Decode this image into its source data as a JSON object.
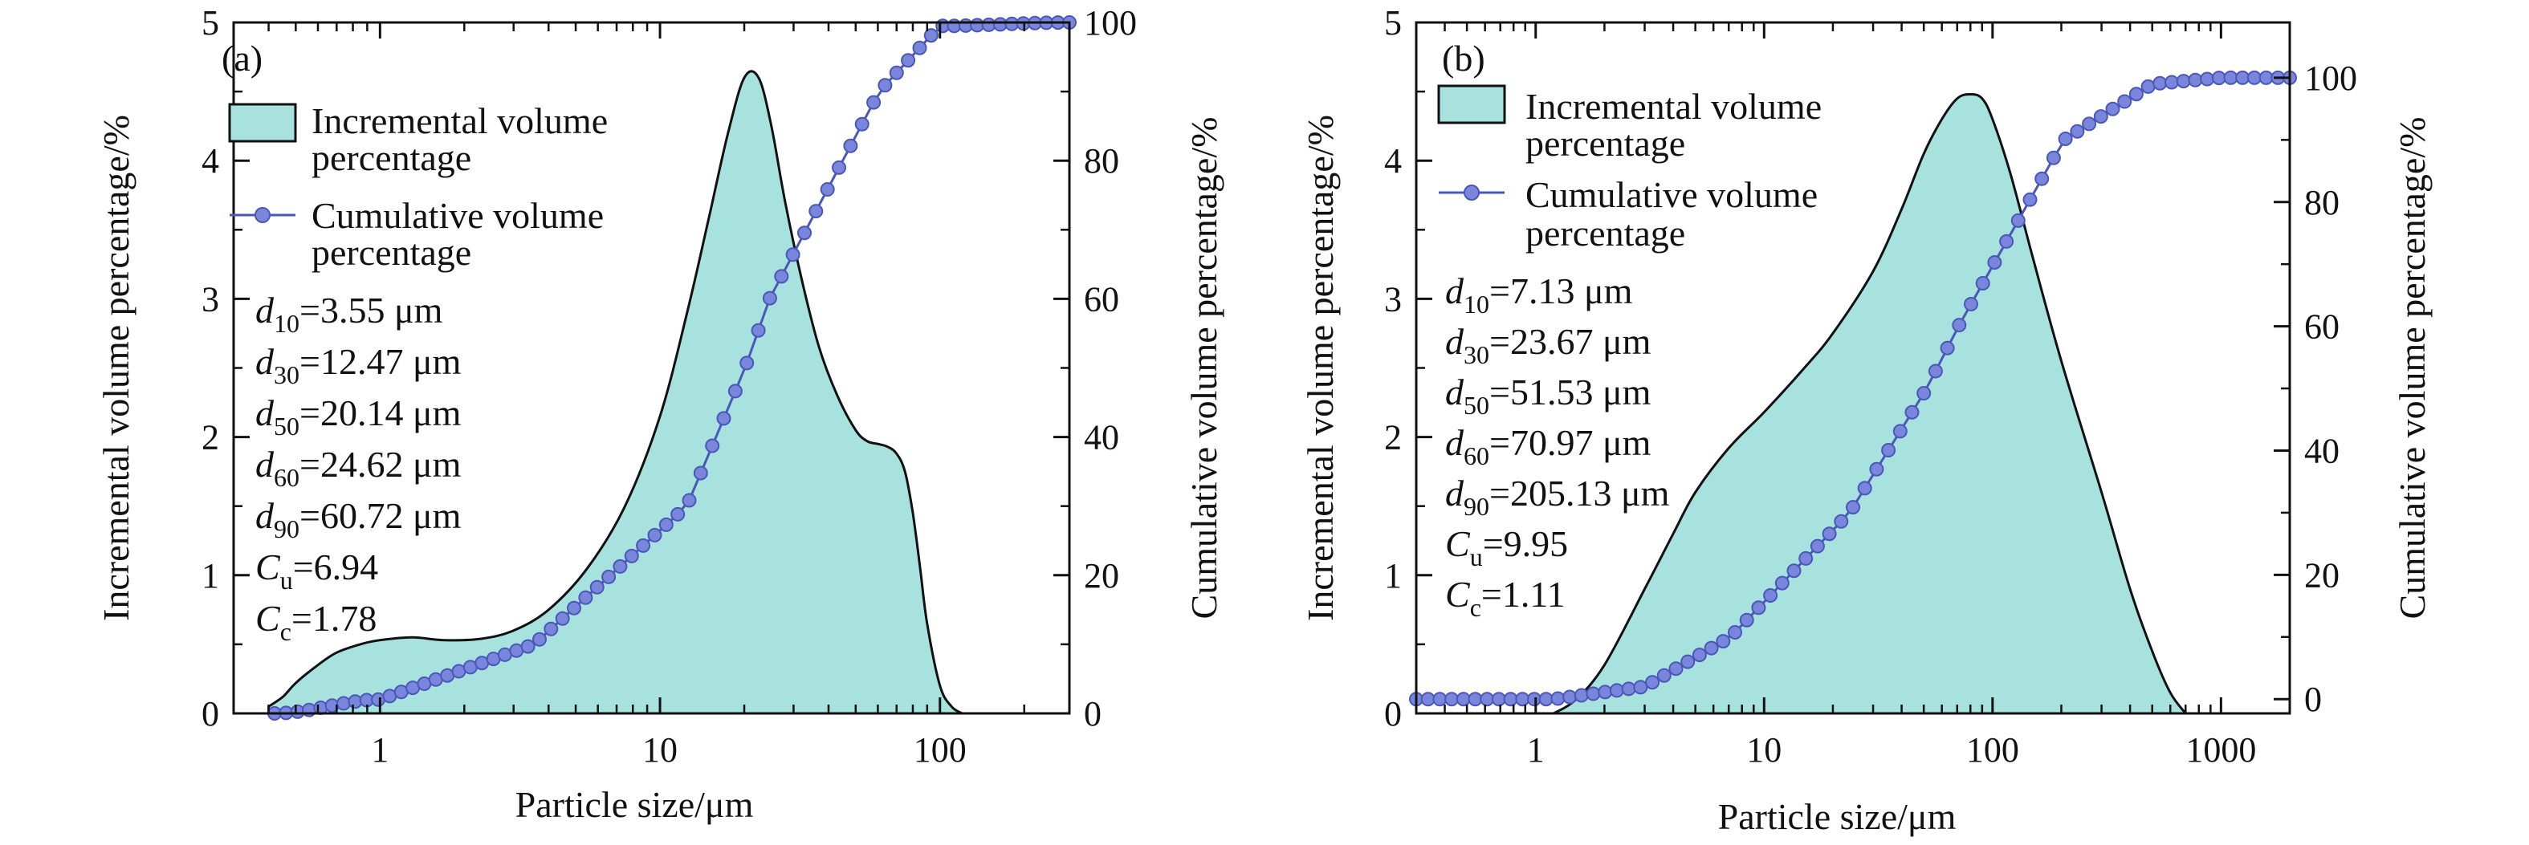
{
  "figure": {
    "colors": {
      "fill": "#a8e2df",
      "outline": "#111111",
      "cumulative_line": "#4a57b8",
      "marker": "#7a86dc"
    }
  },
  "chart_data": [
    {
      "type": "area",
      "panel_label": "(a)",
      "xlabel": "Particle size/μm",
      "ylabel_left": "Incremental volume percentage/%",
      "ylabel_right": "Cumulative volume percentage/%",
      "x_scale": "log",
      "xlim": [
        0.3,
        290
      ],
      "ylim_left": [
        0,
        5
      ],
      "ylim_right": [
        0,
        100
      ],
      "x_ticks": [
        1,
        10,
        100
      ],
      "x_tick_labels": [
        "1",
        "10",
        "100"
      ],
      "y_ticks_left": [
        0,
        1,
        2,
        3,
        4,
        5
      ],
      "y_tick_labels_left": [
        "0",
        "1",
        "2",
        "3",
        "4",
        "5"
      ],
      "y_ticks_right": [
        0,
        20,
        40,
        60,
        80,
        100
      ],
      "y_tick_labels_right": [
        "0",
        "20",
        "40",
        "60",
        "80",
        "100"
      ],
      "legend": {
        "incremental_line1": "Incremental volume",
        "incremental_line2": "percentage",
        "cumulative_line1": "Cumulative volume",
        "cumulative_line2": "percentage"
      },
      "annotations": [
        {
          "sym": "d",
          "sub": "10",
          "val": "=3.55 μm"
        },
        {
          "sym": "d",
          "sub": "30",
          "val": "=12.47 μm"
        },
        {
          "sym": "d",
          "sub": "50",
          "val": "=20.14 μm"
        },
        {
          "sym": "d",
          "sub": "60",
          "val": "=24.62 μm"
        },
        {
          "sym": "d",
          "sub": "90",
          "val": "=60.72 μm"
        },
        {
          "sym": "C",
          "sub": "u",
          "val": "=6.94"
        },
        {
          "sym": "C",
          "sub": "c",
          "val": "=1.78"
        }
      ],
      "incremental_series": {
        "x": [
          0.4,
          0.45,
          0.5,
          0.6,
          0.7,
          0.85,
          1.0,
          1.3,
          1.7,
          2.3,
          3.0,
          4.0,
          5.5,
          7.5,
          10,
          12.5,
          15,
          17.5,
          20,
          22.5,
          25,
          28,
          32,
          37,
          43,
          50,
          55,
          60,
          65,
          70,
          75,
          80,
          85,
          90,
          100,
          110,
          120
        ],
        "y": [
          0.05,
          0.12,
          0.22,
          0.35,
          0.44,
          0.5,
          0.53,
          0.55,
          0.53,
          0.54,
          0.6,
          0.75,
          1.05,
          1.5,
          2.15,
          2.9,
          3.6,
          4.2,
          4.6,
          4.6,
          4.25,
          3.7,
          3.15,
          2.65,
          2.3,
          2.05,
          1.97,
          1.95,
          1.93,
          1.88,
          1.75,
          1.45,
          1.05,
          0.65,
          0.2,
          0.05,
          0.0
        ]
      },
      "cumulative_series": {
        "x_start": 0.42,
        "x_end": 290,
        "points": 70,
        "median": 20.14,
        "log_sigma": 0.55,
        "anchors": [
          [
            0.42,
            0
          ],
          [
            1,
            2
          ],
          [
            3.55,
            10
          ],
          [
            12.47,
            30
          ],
          [
            20.14,
            50
          ],
          [
            24.62,
            60
          ],
          [
            60.72,
            90
          ],
          [
            100,
            99.5
          ],
          [
            290,
            100
          ]
        ]
      }
    },
    {
      "type": "area",
      "panel_label": "(b)",
      "xlabel": "Particle size/μm",
      "ylabel_left": "Incremental volume percentage/%",
      "ylabel_right": "Cumulative volume percentage/%",
      "x_scale": "log",
      "xlim": [
        0.3,
        2000
      ],
      "ylim_left": [
        0,
        5
      ],
      "ylim_right": [
        -2.3,
        108.9
      ],
      "x_ticks": [
        1,
        10,
        100,
        1000
      ],
      "x_tick_labels": [
        "1",
        "10",
        "100",
        "1000"
      ],
      "y_ticks_left": [
        0,
        1,
        2,
        3,
        4,
        5
      ],
      "y_tick_labels_left": [
        "0",
        "1",
        "2",
        "3",
        "4",
        "5"
      ],
      "y_ticks_right": [
        0,
        20,
        40,
        60,
        80,
        100
      ],
      "y_tick_labels_right": [
        "0",
        "20",
        "40",
        "60",
        "80",
        "100"
      ],
      "legend": {
        "incremental_line1": "Incremental volume",
        "incremental_line2": "percentage",
        "cumulative_line1": "Cumulative volume",
        "cumulative_line2": "percentage"
      },
      "annotations": [
        {
          "sym": "d",
          "sub": "10",
          "val": "=7.13 μm"
        },
        {
          "sym": "d",
          "sub": "30",
          "val": "=23.67 μm"
        },
        {
          "sym": "d",
          "sub": "50",
          "val": "=51.53 μm"
        },
        {
          "sym": "d",
          "sub": "60",
          "val": "=70.97 μm"
        },
        {
          "sym": "d",
          "sub": "90",
          "val": "=205.13 μm"
        },
        {
          "sym": "C",
          "sub": "u",
          "val": "=9.95"
        },
        {
          "sym": "C",
          "sub": "c",
          "val": "=1.11"
        }
      ],
      "incremental_series": {
        "x": [
          1.2,
          1.5,
          2.0,
          3.0,
          4.0,
          5.0,
          7.0,
          10,
          15,
          20,
          30,
          40,
          50,
          60,
          70,
          80,
          90,
          100,
          120,
          150,
          200,
          300,
          400,
          500,
          600,
          700
        ],
        "y": [
          0.0,
          0.1,
          0.35,
          0.9,
          1.3,
          1.6,
          1.92,
          2.18,
          2.5,
          2.75,
          3.2,
          3.65,
          4.05,
          4.3,
          4.45,
          4.48,
          4.45,
          4.3,
          3.9,
          3.3,
          2.55,
          1.6,
          0.9,
          0.45,
          0.15,
          0.0
        ]
      },
      "cumulative_series": {
        "x_start": 0.3,
        "x_end": 2000,
        "points": 75,
        "median": 51.53,
        "log_sigma": 0.65,
        "anchors": [
          [
            0.3,
            0
          ],
          [
            1.2,
            0
          ],
          [
            3,
            2
          ],
          [
            7.13,
            10
          ],
          [
            23.67,
            30
          ],
          [
            51.53,
            50
          ],
          [
            70.97,
            60
          ],
          [
            205.13,
            90
          ],
          [
            500,
            99
          ],
          [
            1000,
            100
          ],
          [
            2000,
            100
          ]
        ]
      }
    }
  ]
}
